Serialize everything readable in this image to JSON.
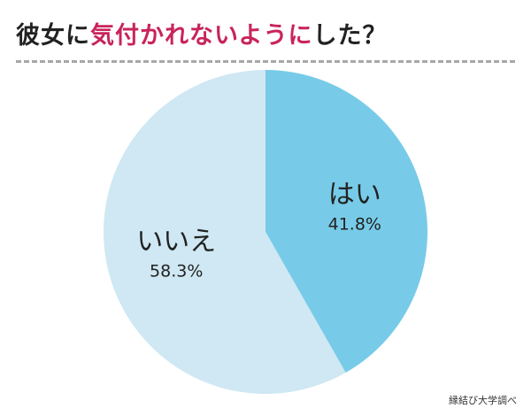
{
  "title": {
    "part1": "彼女に",
    "highlight": "気付かれないように",
    "part2": "した？"
  },
  "source": "縁結び大学調べ",
  "colors": {
    "title_highlight": "#c8245c",
    "divider": "#a7a7a7"
  },
  "chart_data": {
    "type": "pie",
    "slices": [
      {
        "label": "はい",
        "value": 41.8,
        "value_label": "41.8%",
        "color": "#77cbe8"
      },
      {
        "label": "いいえ",
        "value": 58.3,
        "value_label": "58.3%",
        "color": "#cfe8f3"
      }
    ],
    "start": "12 o'clock",
    "direction": "clockwise"
  }
}
